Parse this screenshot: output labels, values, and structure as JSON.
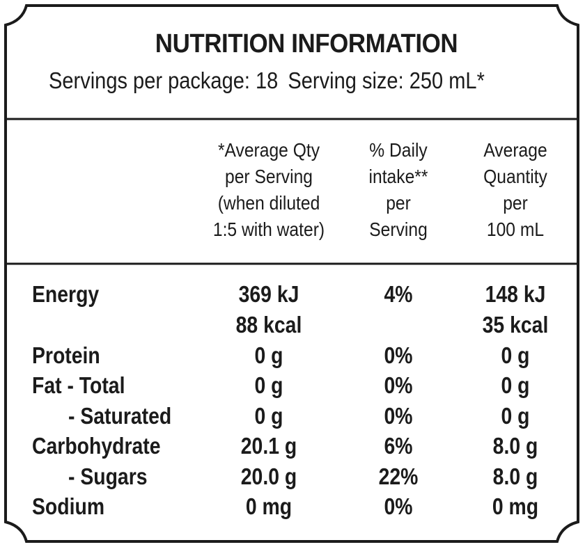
{
  "panel": {
    "title": "NUTRITION INFORMATION",
    "servings_per_package": "Servings per package: 18",
    "serving_size": "Serving size: 250 mL*"
  },
  "columns": [
    {
      "header": "*Average Qty\nper Serving\n(when diluted\n1:5 with water)"
    },
    {
      "header": "% Daily\nintake**\nper\nServing"
    },
    {
      "header": "Average\nQuantity\nper\n100 mL"
    }
  ],
  "rows": [
    {
      "label": "Energy",
      "per_serving": "369 kJ",
      "daily_intake": "4%",
      "per_100ml": "148 kJ"
    },
    {
      "label": "",
      "per_serving": "88 kcal",
      "daily_intake": "",
      "per_100ml": "35 kcal"
    },
    {
      "label": "Protein",
      "per_serving": "0 g",
      "daily_intake": "0%",
      "per_100ml": "0 g"
    },
    {
      "label": "Fat - Total",
      "per_serving": "0 g",
      "daily_intake": "0%",
      "per_100ml": "0 g"
    },
    {
      "label": "- Saturated",
      "per_serving": "0 g",
      "daily_intake": "0%",
      "per_100ml": "0 g"
    },
    {
      "label": "Carbohydrate",
      "per_serving": "20.1 g",
      "daily_intake": "6%",
      "per_100ml": "8.0 g"
    },
    {
      "label": "- Sugars",
      "per_serving": "20.0 g",
      "daily_intake": "22%",
      "per_100ml": "8.0 g"
    },
    {
      "label": "Sodium",
      "per_serving": "0 mg",
      "daily_intake": "0%",
      "per_100ml": "0 mg"
    }
  ]
}
